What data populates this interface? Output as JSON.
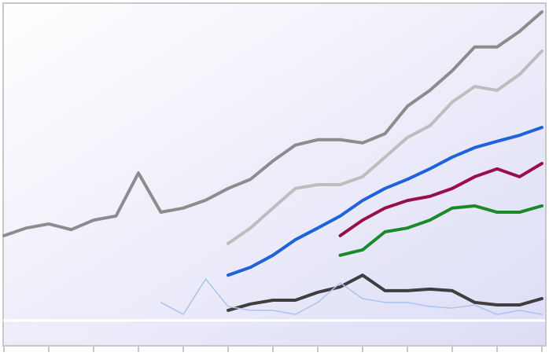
{
  "chart_data": {
    "type": "line",
    "x": [
      0,
      1,
      2,
      3,
      4,
      5,
      6,
      7,
      8,
      9,
      10,
      11,
      12,
      13,
      14,
      15,
      16,
      17,
      18,
      19,
      20,
      21,
      22,
      23,
      24
    ],
    "xlim": [
      0,
      24
    ],
    "xticks": [
      0,
      2,
      4,
      6,
      8,
      10,
      12,
      14,
      16,
      18,
      20,
      22,
      24
    ],
    "ylim": [
      -8,
      100
    ],
    "reference_line": 0,
    "series": [
      {
        "color": "#8c8c8c",
        "width": 4,
        "values": [
          26.8,
          29.2,
          30.5,
          28.7,
          31.7,
          33.0,
          46.6,
          34.2,
          35.5,
          38.0,
          41.7,
          44.6,
          50.4,
          55.4,
          57.1,
          57.1,
          56.1,
          59.0,
          67.7,
          72.7,
          78.9,
          86.4,
          86.4,
          91.3,
          97.5
        ]
      },
      {
        "color": "#bdbdbd",
        "width": 4,
        "values": [
          null,
          null,
          null,
          null,
          null,
          null,
          null,
          null,
          null,
          null,
          24.3,
          29.2,
          35.5,
          41.7,
          42.9,
          42.9,
          45.4,
          51.6,
          57.8,
          61.5,
          69.0,
          73.9,
          72.7,
          77.7,
          85.1
        ]
      },
      {
        "color": "#1f63d9",
        "width": 4,
        "values": [
          null,
          null,
          null,
          null,
          null,
          null,
          null,
          null,
          null,
          null,
          14.3,
          16.8,
          20.6,
          25.5,
          29.2,
          33.0,
          37.9,
          41.7,
          44.6,
          47.9,
          51.6,
          54.6,
          56.6,
          58.5,
          61.0
        ]
      },
      {
        "color": "#9a0f4a",
        "width": 4,
        "values": [
          null,
          null,
          null,
          null,
          null,
          null,
          null,
          null,
          null,
          null,
          null,
          null,
          null,
          null,
          null,
          26.8,
          31.7,
          35.5,
          37.9,
          39.2,
          41.7,
          45.4,
          47.9,
          45.4,
          49.6
        ]
      },
      {
        "color": "#1a8a2a",
        "width": 4,
        "values": [
          null,
          null,
          null,
          null,
          null,
          null,
          null,
          null,
          null,
          null,
          null,
          null,
          null,
          null,
          null,
          20.6,
          22.3,
          28.0,
          29.2,
          31.7,
          35.5,
          36.2,
          34.2,
          34.2,
          36.2
        ]
      },
      {
        "color": "#3f3f3f",
        "width": 4,
        "values": [
          null,
          null,
          null,
          null,
          null,
          null,
          null,
          null,
          null,
          null,
          3.2,
          5.2,
          6.4,
          6.4,
          8.9,
          10.6,
          14.3,
          9.4,
          9.4,
          9.9,
          9.4,
          5.7,
          4.9,
          4.9,
          6.9
        ]
      },
      {
        "color": "#a9c4f0",
        "width": 1.5,
        "values": [
          null,
          null,
          null,
          null,
          null,
          null,
          null,
          5.7,
          1.9,
          13.1,
          4.4,
          3.2,
          3.2,
          1.9,
          5.7,
          11.9,
          6.9,
          5.7,
          5.7,
          4.4,
          3.9,
          4.9,
          1.9,
          3.2,
          1.9
        ]
      }
    ]
  }
}
